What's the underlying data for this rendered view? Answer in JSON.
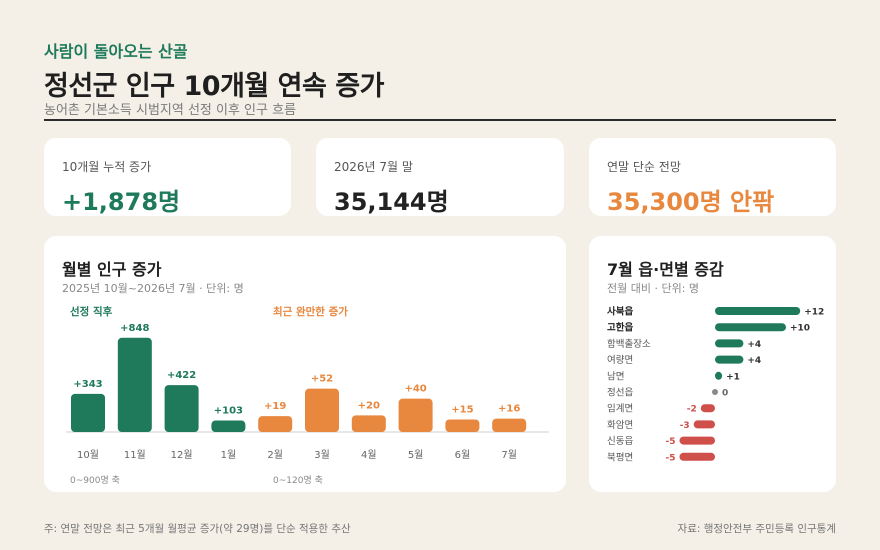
{
  "header": {
    "kicker": "사람이 돌아오는 산골",
    "title": "정선군 인구 10개월 연속 증가",
    "subtitle": "농어촌 기본소득 시범지역 선정 이후 인구 흐름"
  },
  "kpis": [
    {
      "label": "10개월 누적 증가",
      "value": "+1,878명"
    },
    {
      "label": "2026년 7월 말",
      "value": "35,144명"
    },
    {
      "label": "연말 단순 전망",
      "value": "35,300명 안팎"
    }
  ],
  "colors": {
    "green": "#1e7a5a",
    "orange": "#e8873e",
    "red": "#cf4f4a",
    "gray": "#8a8a8a",
    "background": "#f4f0e8"
  },
  "monthly_panel": {
    "title": "월별 인구 증가",
    "subtitle": "2025년 10월~2026년 7월 · 단위: 명",
    "group_label_early": "선정 직후",
    "group_label_recent": "최근 완만한 증가",
    "axis_note_left": "0~900명 축",
    "axis_note_right": "0~120명 축"
  },
  "town_panel": {
    "title": "7월 읍·면별 증감",
    "subtitle": "전월 대비 · 단위: 명"
  },
  "chart_data": [
    {
      "type": "bar",
      "title": "월별 인구 증가",
      "categories": [
        "10월",
        "11월",
        "12월",
        "1월",
        "2월",
        "3월",
        "4월",
        "5월",
        "6월",
        "7월"
      ],
      "values": [
        343,
        848,
        422,
        103,
        19,
        52,
        20,
        40,
        15,
        16
      ],
      "labels": [
        "+343",
        "+848",
        "+422",
        "+103",
        "+19",
        "+52",
        "+20",
        "+40",
        "+15",
        "+16"
      ],
      "axis_groups": [
        {
          "label": "0~900명 축",
          "categories": [
            "10월",
            "11월",
            "12월",
            "1월"
          ],
          "ylim": [
            0,
            900
          ],
          "color": "#1e7a5a"
        },
        {
          "label": "0~120명 축",
          "categories": [
            "2월",
            "3월",
            "4월",
            "5월",
            "6월",
            "7월"
          ],
          "ylim": [
            0,
            120
          ],
          "color": "#e8873e"
        }
      ]
    },
    {
      "type": "bar",
      "orientation": "horizontal",
      "title": "7월 읍·면별 증감",
      "categories": [
        "사북읍",
        "고한읍",
        "함백출장소",
        "여량면",
        "남면",
        "정선읍",
        "임계면",
        "화암면",
        "신동읍",
        "북평면"
      ],
      "values": [
        12,
        10,
        4,
        4,
        1,
        0,
        -2,
        -3,
        -5,
        -5
      ],
      "labels": [
        "+12",
        "+10",
        "+4",
        "+4",
        "+1",
        "0",
        "-2",
        "-3",
        "-5",
        "-5"
      ],
      "bold_categories": [
        "사북읍",
        "고한읍"
      ]
    }
  ],
  "footer": {
    "note": "주: 연말 전망은 최근 5개월 월평균 증가(약 29명)를 단순 적용한 추산",
    "source": "자료: 행정안전부 주민등록 인구통계"
  }
}
